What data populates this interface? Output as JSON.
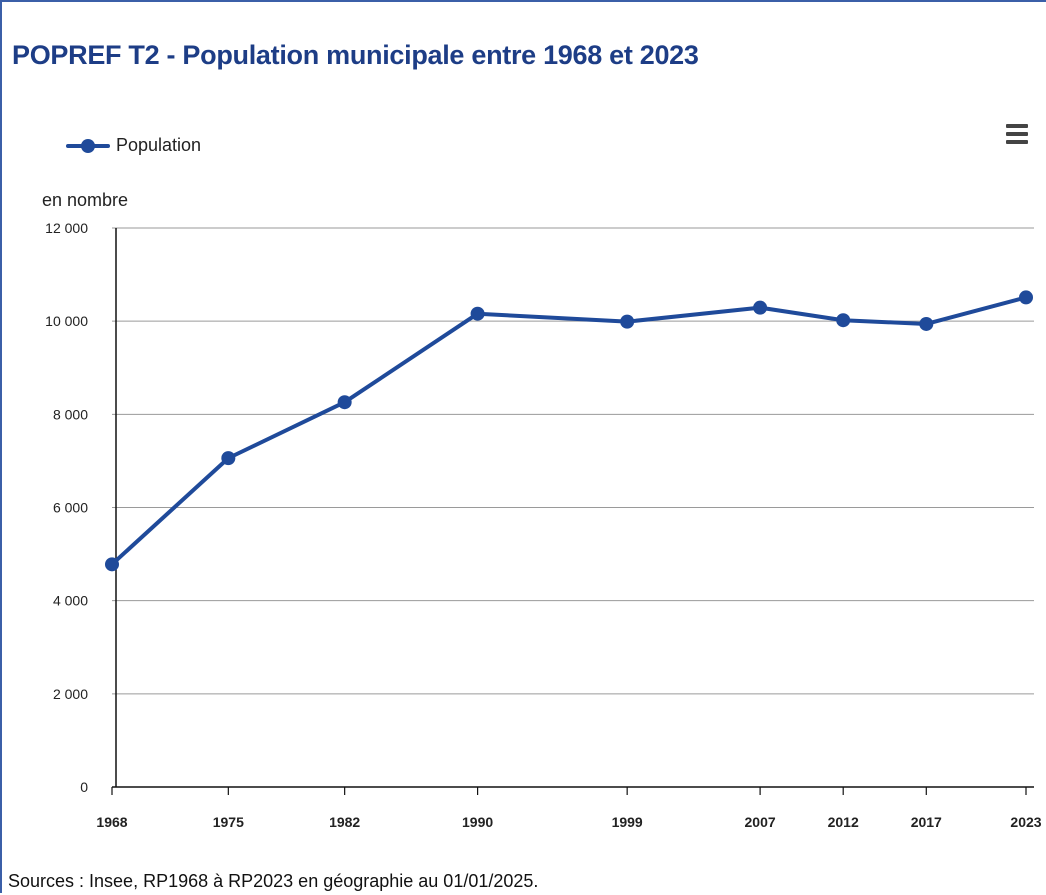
{
  "header": {
    "title": "POPREF T2 - Population municipale entre 1968 et 2023",
    "menu_icon": "hamburger-menu-icon"
  },
  "legend": {
    "label": "Population"
  },
  "footer": {
    "source": "Sources : Insee, RP1968 à RP2023 en géographie au 01/01/2025."
  },
  "colors": {
    "series": "#1f4a9a",
    "title": "#1d3d86",
    "grid": "#9a9a9a",
    "axis": "#111111"
  },
  "chart_data": {
    "type": "line",
    "title": "POPREF T2 - Population municipale entre 1968 et 2023",
    "ylabel": "en nombre",
    "xlabel": "",
    "x": [
      "1968",
      "1975",
      "1982",
      "1990",
      "1999",
      "2007",
      "2012",
      "2017",
      "2023"
    ],
    "series": [
      {
        "name": "Population",
        "values": [
          4780,
          7060,
          8260,
          10160,
          9990,
          10290,
          10020,
          9940,
          10510
        ]
      }
    ],
    "ylim": [
      0,
      12000
    ],
    "yticks": [
      0,
      2000,
      4000,
      6000,
      8000,
      10000,
      12000
    ],
    "ytick_labels": [
      "0",
      "2 000",
      "4 000",
      "6 000",
      "8 000",
      "10 000",
      "12 000"
    ],
    "grid": true,
    "legend_position": "top-left"
  }
}
